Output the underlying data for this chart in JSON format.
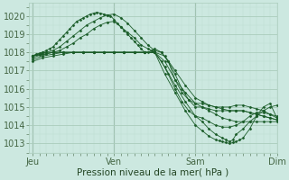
{
  "xlabel": "Pression niveau de la mer( hPa )",
  "bg_color": "#cce8e0",
  "plot_bg_color": "#cce8e0",
  "grid_major_color": "#aaccbb",
  "grid_minor_color": "#bbddd0",
  "line_color": "#1a5c28",
  "ylim": [
    1012.5,
    1020.7
  ],
  "yticks": [
    1013,
    1014,
    1015,
    1016,
    1017,
    1018,
    1019,
    1020
  ],
  "xtick_labels": [
    "Jeu",
    "Ven",
    "Sam",
    "Dim"
  ],
  "xtick_positions": [
    0,
    96,
    192,
    288
  ],
  "total_points": 288,
  "series": [
    {
      "x": [
        0,
        4,
        8,
        12,
        16,
        20,
        24,
        28,
        32,
        36,
        40,
        44,
        48,
        52,
        56,
        60,
        64,
        68,
        72,
        76,
        80,
        84,
        88,
        92,
        96,
        100,
        104,
        108,
        112,
        116,
        120,
        124,
        128,
        132,
        136,
        140,
        144,
        152,
        160,
        168,
        176,
        184,
        192,
        200,
        208,
        216,
        224,
        232,
        240,
        248,
        256,
        264,
        272,
        280,
        288
      ],
      "y": [
        1017.8,
        1017.9,
        1017.95,
        1018.0,
        1018.1,
        1018.2,
        1018.3,
        1018.5,
        1018.7,
        1018.9,
        1019.1,
        1019.3,
        1019.5,
        1019.7,
        1019.8,
        1019.9,
        1020.0,
        1020.1,
        1020.15,
        1020.2,
        1020.15,
        1020.1,
        1020.05,
        1020.0,
        1019.8,
        1019.6,
        1019.4,
        1019.2,
        1019.0,
        1018.8,
        1018.6,
        1018.4,
        1018.2,
        1018.0,
        1018.0,
        1018.1,
        1018.2,
        1018.0,
        1017.5,
        1016.5,
        1015.8,
        1015.4,
        1015.2,
        1015.2,
        1015.1,
        1015.0,
        1015.0,
        1015.0,
        1015.1,
        1015.1,
        1015.0,
        1014.9,
        1014.8,
        1014.6,
        1014.4
      ]
    },
    {
      "x": [
        0,
        8,
        16,
        24,
        32,
        40,
        48,
        56,
        64,
        72,
        80,
        88,
        96,
        104,
        112,
        120,
        128,
        136,
        144,
        152,
        160,
        168,
        176,
        184,
        192,
        200,
        208,
        216,
        224,
        232,
        240,
        248,
        256,
        264,
        272,
        280,
        288
      ],
      "y": [
        1017.8,
        1017.9,
        1018.0,
        1018.1,
        1018.3,
        1018.6,
        1018.9,
        1019.2,
        1019.5,
        1019.7,
        1019.9,
        1020.05,
        1020.1,
        1019.9,
        1019.6,
        1019.2,
        1018.8,
        1018.4,
        1018.1,
        1018.0,
        1017.5,
        1016.8,
        1016.0,
        1015.4,
        1015.0,
        1015.0,
        1014.9,
        1014.8,
        1014.8,
        1014.8,
        1014.8,
        1014.8,
        1014.7,
        1014.6,
        1014.5,
        1014.4,
        1014.3
      ]
    },
    {
      "x": [
        0,
        8,
        16,
        24,
        32,
        40,
        48,
        56,
        64,
        72,
        80,
        88,
        96,
        104,
        112,
        120,
        128,
        136,
        144,
        152,
        160,
        168,
        176,
        184,
        192,
        200,
        208,
        216,
        224,
        232,
        240,
        248,
        256,
        264,
        272,
        280,
        288
      ],
      "y": [
        1017.8,
        1017.85,
        1017.9,
        1018.0,
        1018.1,
        1018.3,
        1018.5,
        1018.8,
        1019.0,
        1019.3,
        1019.5,
        1019.65,
        1019.7,
        1019.4,
        1019.1,
        1018.8,
        1018.4,
        1018.2,
        1018.0,
        1017.5,
        1016.8,
        1016.0,
        1015.3,
        1014.8,
        1014.5,
        1014.4,
        1014.2,
        1014.0,
        1013.9,
        1013.9,
        1014.0,
        1014.2,
        1014.5,
        1014.7,
        1014.7,
        1014.6,
        1014.5
      ]
    },
    {
      "x": [
        0,
        12,
        24,
        36,
        48,
        60,
        72,
        84,
        96,
        108,
        120,
        132,
        144,
        156,
        168,
        180,
        192,
        200,
        208,
        216,
        224,
        232,
        240,
        248,
        256,
        264,
        272,
        280,
        288
      ],
      "y": [
        1017.8,
        1018.0,
        1018.0,
        1018.0,
        1018.0,
        1018.0,
        1018.0,
        1018.0,
        1018.0,
        1018.0,
        1018.0,
        1018.0,
        1018.0,
        1017.8,
        1017.0,
        1016.2,
        1015.5,
        1015.3,
        1015.1,
        1015.0,
        1014.9,
        1014.8,
        1014.8,
        1014.8,
        1014.7,
        1014.6,
        1014.5,
        1014.4,
        1014.3
      ]
    },
    {
      "x": [
        0,
        12,
        24,
        36,
        48,
        60,
        72,
        84,
        96,
        108,
        120,
        132,
        144,
        156,
        168,
        180,
        192,
        200,
        208,
        216,
        224,
        232,
        240,
        248,
        256,
        264,
        272,
        280,
        288
      ],
      "y": [
        1017.7,
        1017.9,
        1018.0,
        1018.0,
        1018.0,
        1018.0,
        1018.0,
        1018.0,
        1018.0,
        1018.0,
        1018.0,
        1018.0,
        1018.0,
        1017.5,
        1016.5,
        1015.8,
        1015.2,
        1015.0,
        1014.8,
        1014.6,
        1014.4,
        1014.3,
        1014.2,
        1014.2,
        1014.2,
        1014.2,
        1014.2,
        1014.2,
        1014.2
      ]
    },
    {
      "x": [
        0,
        12,
        24,
        36,
        48,
        60,
        72,
        84,
        96,
        108,
        120,
        132,
        144,
        156,
        168,
        180,
        192,
        200,
        208,
        216,
        224,
        228,
        232,
        236,
        240,
        248,
        256,
        264,
        272,
        280,
        288
      ],
      "y": [
        1017.6,
        1017.8,
        1017.9,
        1018.0,
        1018.0,
        1018.0,
        1018.0,
        1018.0,
        1018.0,
        1018.0,
        1018.0,
        1018.0,
        1018.0,
        1017.2,
        1016.2,
        1015.3,
        1014.5,
        1014.2,
        1013.8,
        1013.5,
        1013.3,
        1013.2,
        1013.1,
        1013.2,
        1013.5,
        1013.8,
        1014.2,
        1014.5,
        1014.8,
        1015.0,
        1015.1
      ]
    },
    {
      "x": [
        0,
        12,
        24,
        36,
        48,
        60,
        72,
        84,
        96,
        108,
        120,
        132,
        144,
        156,
        168,
        180,
        192,
        200,
        208,
        216,
        220,
        224,
        228,
        232,
        236,
        240,
        244,
        248,
        256,
        264,
        272,
        280,
        288
      ],
      "y": [
        1017.5,
        1017.7,
        1017.8,
        1017.9,
        1018.0,
        1018.0,
        1018.0,
        1018.0,
        1018.0,
        1018.0,
        1018.0,
        1018.0,
        1018.0,
        1016.8,
        1015.8,
        1014.8,
        1014.0,
        1013.7,
        1013.4,
        1013.2,
        1013.15,
        1013.1,
        1013.05,
        1013.0,
        1013.05,
        1013.1,
        1013.2,
        1013.3,
        1013.8,
        1014.5,
        1015.0,
        1015.2,
        1014.4
      ]
    }
  ]
}
